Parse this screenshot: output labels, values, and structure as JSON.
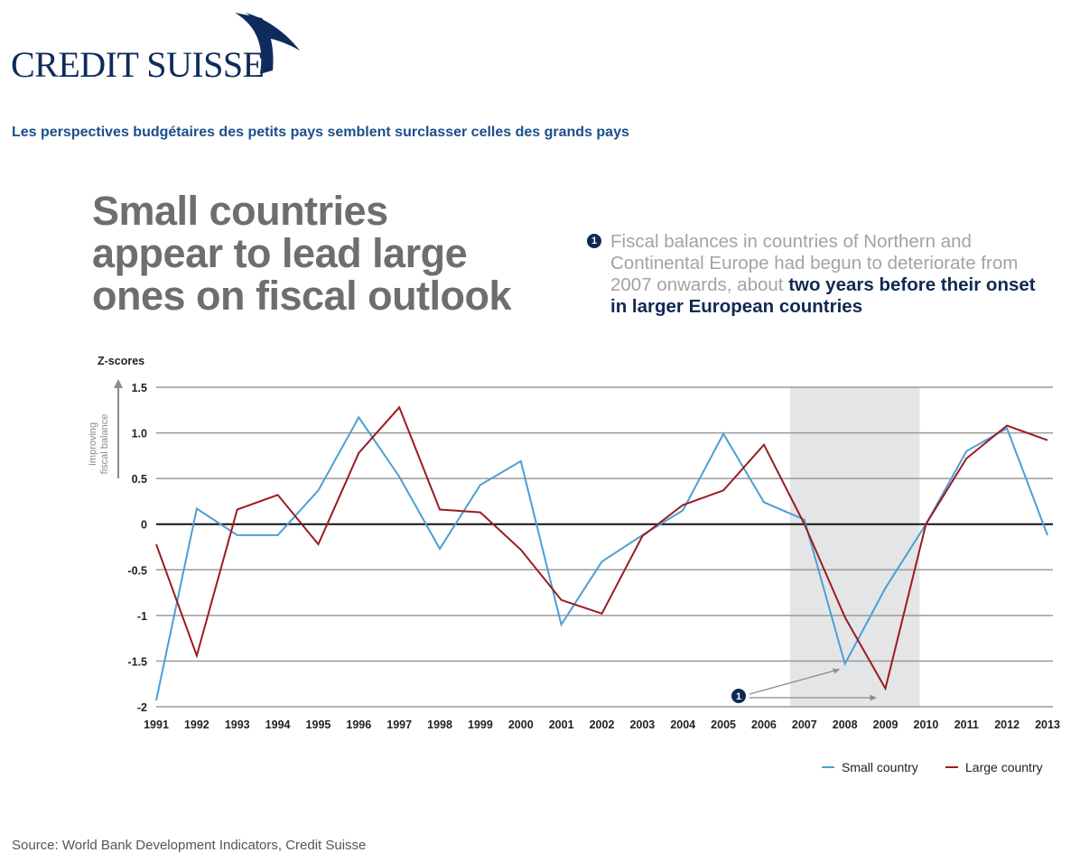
{
  "brand": {
    "logo_text": "CREDIT SUISSE",
    "color": "#0f2a5c"
  },
  "subtitle": "Les perspectives budgétaires des petits pays semblent surclasser celles des grands pays",
  "headline": {
    "line1": "Small countries",
    "line2": "appear to lead large",
    "line3": "ones on fiscal outlook"
  },
  "note": {
    "marker": "1",
    "text_plain": "Fiscal balances in countries of Northern and Continental Europe had begun to deteriorate from 2007 onwards, about",
    "text_highlight": "two years before their onset in larger European countries"
  },
  "source": "Source: World Bank Development Indicators, Credit Suisse",
  "chart_data": {
    "type": "line",
    "ylabel": "Z-scores",
    "side_label_line1": "Improving",
    "side_label_line2": "fiscal balance",
    "x": [
      "1991",
      "1992",
      "1993",
      "1994",
      "1995",
      "1996",
      "1997",
      "1998",
      "1999",
      "2000",
      "2001",
      "2002",
      "2003",
      "2004",
      "2005",
      "2006",
      "2007",
      "2008",
      "2009",
      "2010",
      "2011",
      "2012",
      "2013"
    ],
    "y_ticks": [
      {
        "value": 1.5,
        "label": "1.5"
      },
      {
        "value": 1.0,
        "label": "1.0"
      },
      {
        "value": 0.5,
        "label": "0.5"
      },
      {
        "value": 0,
        "label": "0"
      },
      {
        "value": -0.5,
        "label": "-0.5"
      },
      {
        "value": -1,
        "label": "-1"
      },
      {
        "value": -1.5,
        "label": "-1.5"
      },
      {
        "value": -2,
        "label": "-2"
      }
    ],
    "ylim": [
      -2,
      1.5
    ],
    "grid": true,
    "shaded_period": [
      "2007",
      "2010"
    ],
    "series": [
      {
        "name": "Small country",
        "color": "#4b9fd5",
        "values": [
          -1.93,
          0.17,
          -0.12,
          -0.12,
          0.37,
          1.17,
          0.52,
          -0.27,
          0.43,
          0.69,
          -1.1,
          -0.41,
          -0.12,
          0.15,
          0.99,
          0.24,
          0.05,
          -1.53,
          -0.7,
          0.0,
          0.8,
          1.05,
          -0.12
        ]
      },
      {
        "name": "Large country",
        "color": "#9b1b1f",
        "values": [
          -0.22,
          -1.44,
          0.16,
          0.32,
          -0.22,
          0.78,
          1.28,
          0.16,
          0.13,
          -0.28,
          -0.83,
          -0.98,
          -0.13,
          0.21,
          0.37,
          0.87,
          0.0,
          -1.02,
          -1.8,
          0.0,
          0.72,
          1.08,
          0.92
        ]
      }
    ],
    "annotation_marker": "1",
    "legend_position": "bottom-right"
  }
}
